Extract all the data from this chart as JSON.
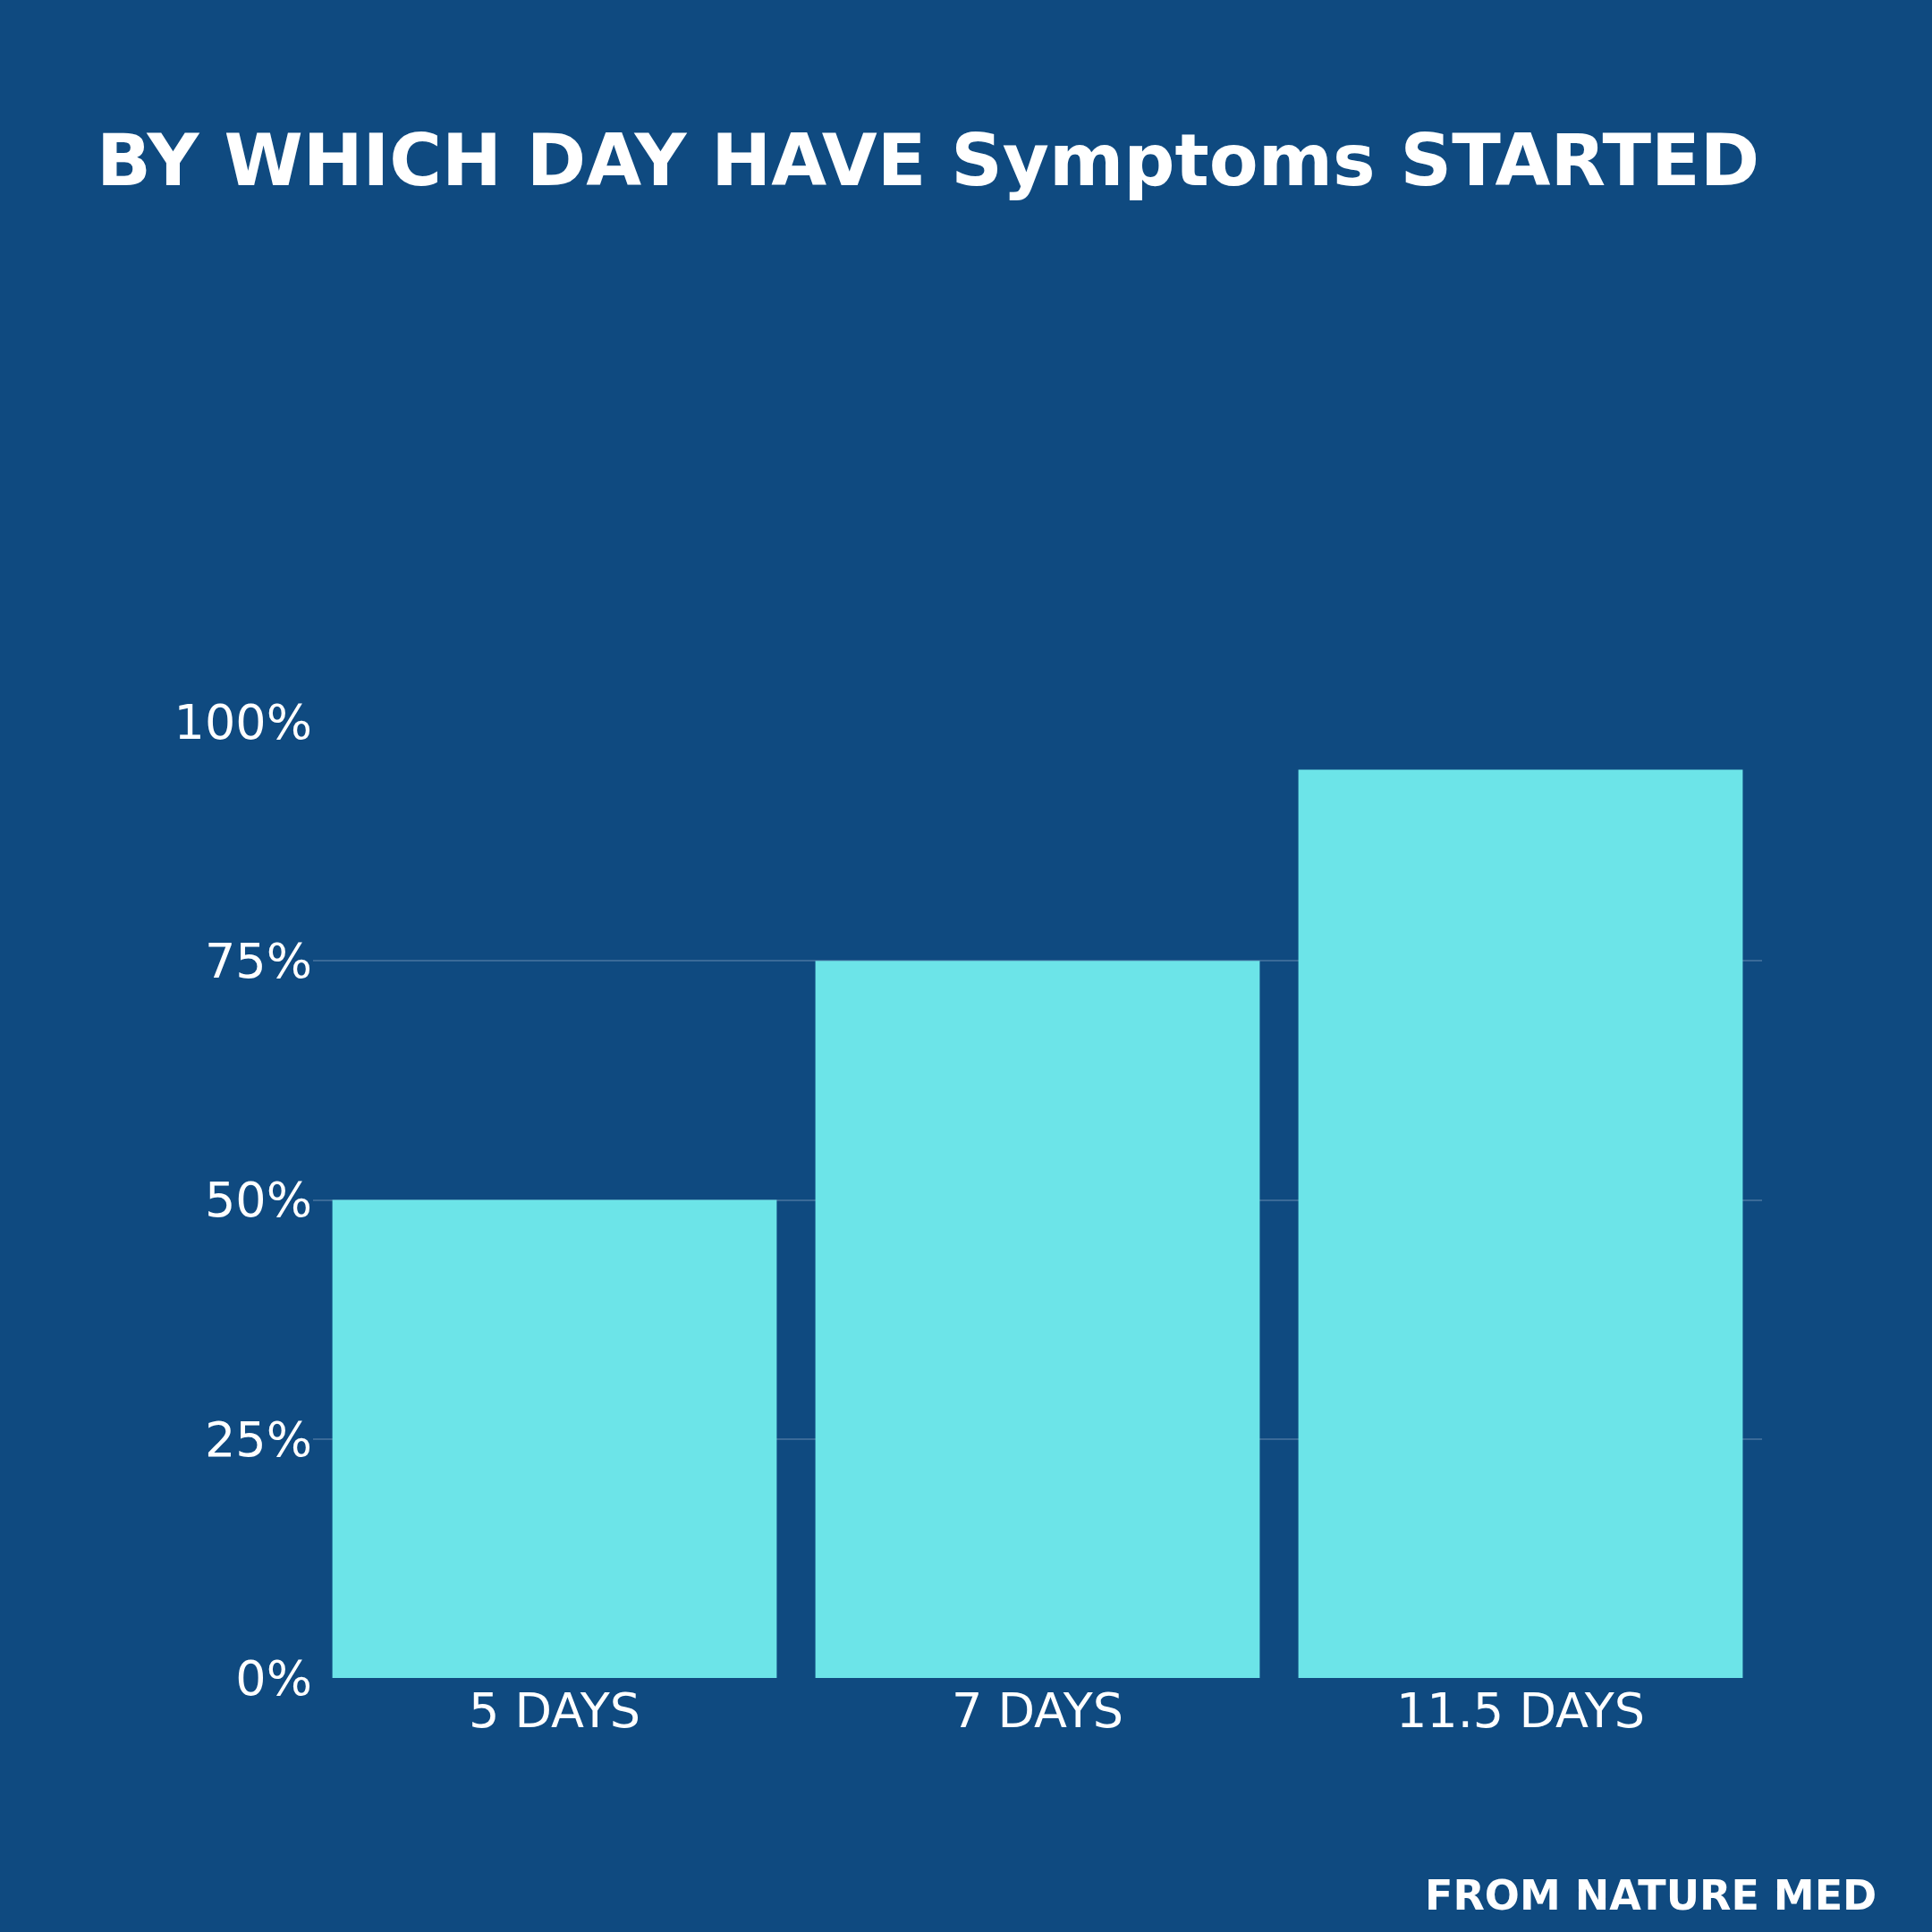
{
  "chart_data": {
    "type": "bar",
    "title": "BY WHICH DAY HAVE Symptoms STARTED",
    "categories": [
      "5 DAYS",
      "7 DAYS",
      "11.5 DAYS"
    ],
    "values": [
      50,
      75,
      95
    ],
    "color": "#6ce4e8",
    "ylim": [
      0,
      100
    ],
    "yticks": [
      {
        "value": 0,
        "label": "0%"
      },
      {
        "value": 25,
        "label": "25%"
      },
      {
        "value": 50,
        "label": "50%"
      },
      {
        "value": 75,
        "label": "75%"
      },
      {
        "value": 100,
        "label": "100%"
      }
    ],
    "grid": "y",
    "annotations": [
      "FROM NATURE MED"
    ]
  }
}
